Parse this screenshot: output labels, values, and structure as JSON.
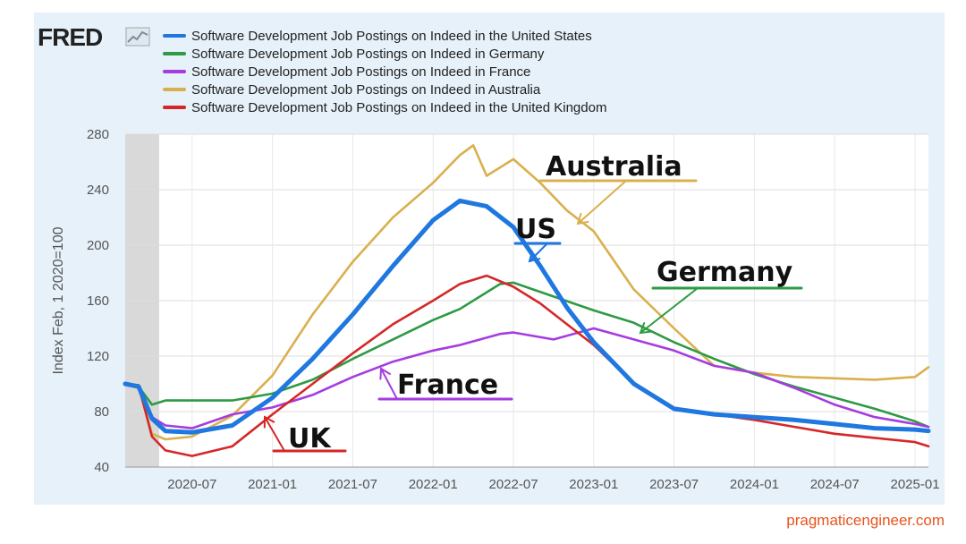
{
  "logo_text": "FRED",
  "source": "pragmaticengineer.com",
  "chart_data": {
    "type": "line",
    "title": "",
    "ylabel": "Index Feb, 1 2020=100",
    "xlabel": "",
    "ylim": [
      40,
      280
    ],
    "y_ticks": [
      40,
      80,
      120,
      160,
      200,
      240,
      280
    ],
    "x_ticks": [
      "2020-07",
      "2021-01",
      "2021-07",
      "2022-01",
      "2022-07",
      "2023-01",
      "2023-07",
      "2024-01",
      "2024-07",
      "2025-01"
    ],
    "x_range": [
      "2020-02",
      "2025-02"
    ],
    "shaded_recession": [
      "2020-02",
      "2020-04"
    ],
    "grid": true,
    "legend_position": "top",
    "series": [
      {
        "name": "Software Development Job Postings on Indeed in the United States",
        "color": "#1f77e0",
        "points": [
          [
            "2020-02",
            100
          ],
          [
            "2020-03",
            98
          ],
          [
            "2020-04",
            75
          ],
          [
            "2020-05",
            66
          ],
          [
            "2020-07",
            65
          ],
          [
            "2020-10",
            70
          ],
          [
            "2021-01",
            90
          ],
          [
            "2021-04",
            118
          ],
          [
            "2021-07",
            150
          ],
          [
            "2021-10",
            185
          ],
          [
            "2022-01",
            218
          ],
          [
            "2022-03",
            232
          ],
          [
            "2022-05",
            228
          ],
          [
            "2022-07",
            213
          ],
          [
            "2022-09",
            185
          ],
          [
            "2022-11",
            155
          ],
          [
            "2023-01",
            130
          ],
          [
            "2023-04",
            100
          ],
          [
            "2023-07",
            82
          ],
          [
            "2023-10",
            78
          ],
          [
            "2024-01",
            76
          ],
          [
            "2024-04",
            74
          ],
          [
            "2024-07",
            71
          ],
          [
            "2024-10",
            68
          ],
          [
            "2025-01",
            67
          ],
          [
            "2025-02",
            66
          ]
        ]
      },
      {
        "name": "Software Development Job Postings on Indeed in Germany",
        "color": "#2e9a44",
        "points": [
          [
            "2020-02",
            100
          ],
          [
            "2020-03",
            98
          ],
          [
            "2020-04",
            85
          ],
          [
            "2020-05",
            88
          ],
          [
            "2020-07",
            88
          ],
          [
            "2020-10",
            88
          ],
          [
            "2021-01",
            93
          ],
          [
            "2021-04",
            103
          ],
          [
            "2021-07",
            118
          ],
          [
            "2021-10",
            132
          ],
          [
            "2022-01",
            146
          ],
          [
            "2022-03",
            154
          ],
          [
            "2022-06",
            172
          ],
          [
            "2022-07",
            173
          ],
          [
            "2022-10",
            163
          ],
          [
            "2023-01",
            153
          ],
          [
            "2023-04",
            144
          ],
          [
            "2023-07",
            130
          ],
          [
            "2023-10",
            118
          ],
          [
            "2024-01",
            107
          ],
          [
            "2024-04",
            98
          ],
          [
            "2024-07",
            90
          ],
          [
            "2024-10",
            82
          ],
          [
            "2025-01",
            73
          ],
          [
            "2025-02",
            69
          ]
        ]
      },
      {
        "name": "Software Development Job Postings on Indeed in France",
        "color": "#a63cdf",
        "points": [
          [
            "2020-02",
            100
          ],
          [
            "2020-03",
            99
          ],
          [
            "2020-04",
            76
          ],
          [
            "2020-05",
            70
          ],
          [
            "2020-07",
            68
          ],
          [
            "2020-10",
            78
          ],
          [
            "2021-01",
            83
          ],
          [
            "2021-04",
            92
          ],
          [
            "2021-07",
            105
          ],
          [
            "2021-10",
            116
          ],
          [
            "2022-01",
            124
          ],
          [
            "2022-03",
            128
          ],
          [
            "2022-06",
            136
          ],
          [
            "2022-07",
            137
          ],
          [
            "2022-10",
            132
          ],
          [
            "2023-01",
            140
          ],
          [
            "2023-04",
            132
          ],
          [
            "2023-07",
            124
          ],
          [
            "2023-10",
            113
          ],
          [
            "2024-01",
            108
          ],
          [
            "2024-04",
            97
          ],
          [
            "2024-07",
            85
          ],
          [
            "2024-10",
            76
          ],
          [
            "2025-01",
            71
          ],
          [
            "2025-02",
            69
          ]
        ]
      },
      {
        "name": "Software Development Job Postings on Indeed in Australia",
        "color": "#d9b04e",
        "points": [
          [
            "2020-02",
            100
          ],
          [
            "2020-03",
            97
          ],
          [
            "2020-04",
            64
          ],
          [
            "2020-05",
            60
          ],
          [
            "2020-07",
            62
          ],
          [
            "2020-10",
            77
          ],
          [
            "2021-01",
            106
          ],
          [
            "2021-04",
            150
          ],
          [
            "2021-07",
            188
          ],
          [
            "2021-10",
            220
          ],
          [
            "2022-01",
            245
          ],
          [
            "2022-03",
            265
          ],
          [
            "2022-04",
            272
          ],
          [
            "2022-05",
            250
          ],
          [
            "2022-07",
            262
          ],
          [
            "2022-09",
            245
          ],
          [
            "2022-11",
            225
          ],
          [
            "2023-01",
            210
          ],
          [
            "2023-04",
            168
          ],
          [
            "2023-07",
            140
          ],
          [
            "2023-10",
            113
          ],
          [
            "2024-01",
            108
          ],
          [
            "2024-04",
            105
          ],
          [
            "2024-07",
            104
          ],
          [
            "2024-10",
            103
          ],
          [
            "2025-01",
            105
          ],
          [
            "2025-02",
            112
          ]
        ]
      },
      {
        "name": "Software Development Job Postings on Indeed in the United Kingdom",
        "color": "#d62728",
        "points": [
          [
            "2020-02",
            100
          ],
          [
            "2020-03",
            99
          ],
          [
            "2020-04",
            62
          ],
          [
            "2020-05",
            52
          ],
          [
            "2020-07",
            48
          ],
          [
            "2020-10",
            55
          ],
          [
            "2021-01",
            78
          ],
          [
            "2021-04",
            100
          ],
          [
            "2021-07",
            122
          ],
          [
            "2021-10",
            143
          ],
          [
            "2022-01",
            160
          ],
          [
            "2022-03",
            172
          ],
          [
            "2022-05",
            178
          ],
          [
            "2022-07",
            170
          ],
          [
            "2022-09",
            158
          ],
          [
            "2022-11",
            143
          ],
          [
            "2023-01",
            128
          ],
          [
            "2023-04",
            100
          ],
          [
            "2023-07",
            82
          ],
          [
            "2023-10",
            78
          ],
          [
            "2024-01",
            74
          ],
          [
            "2024-04",
            69
          ],
          [
            "2024-07",
            64
          ],
          [
            "2024-10",
            61
          ],
          [
            "2025-01",
            58
          ],
          [
            "2025-02",
            55
          ]
        ]
      }
    ],
    "annotations": [
      {
        "text": "Australia",
        "color": "#d9b04e"
      },
      {
        "text": "US",
        "color": "#1f77e0"
      },
      {
        "text": "Germany",
        "color": "#2e9a44"
      },
      {
        "text": "France",
        "color": "#a63cdf"
      },
      {
        "text": "UK",
        "color": "#d62728"
      }
    ]
  }
}
